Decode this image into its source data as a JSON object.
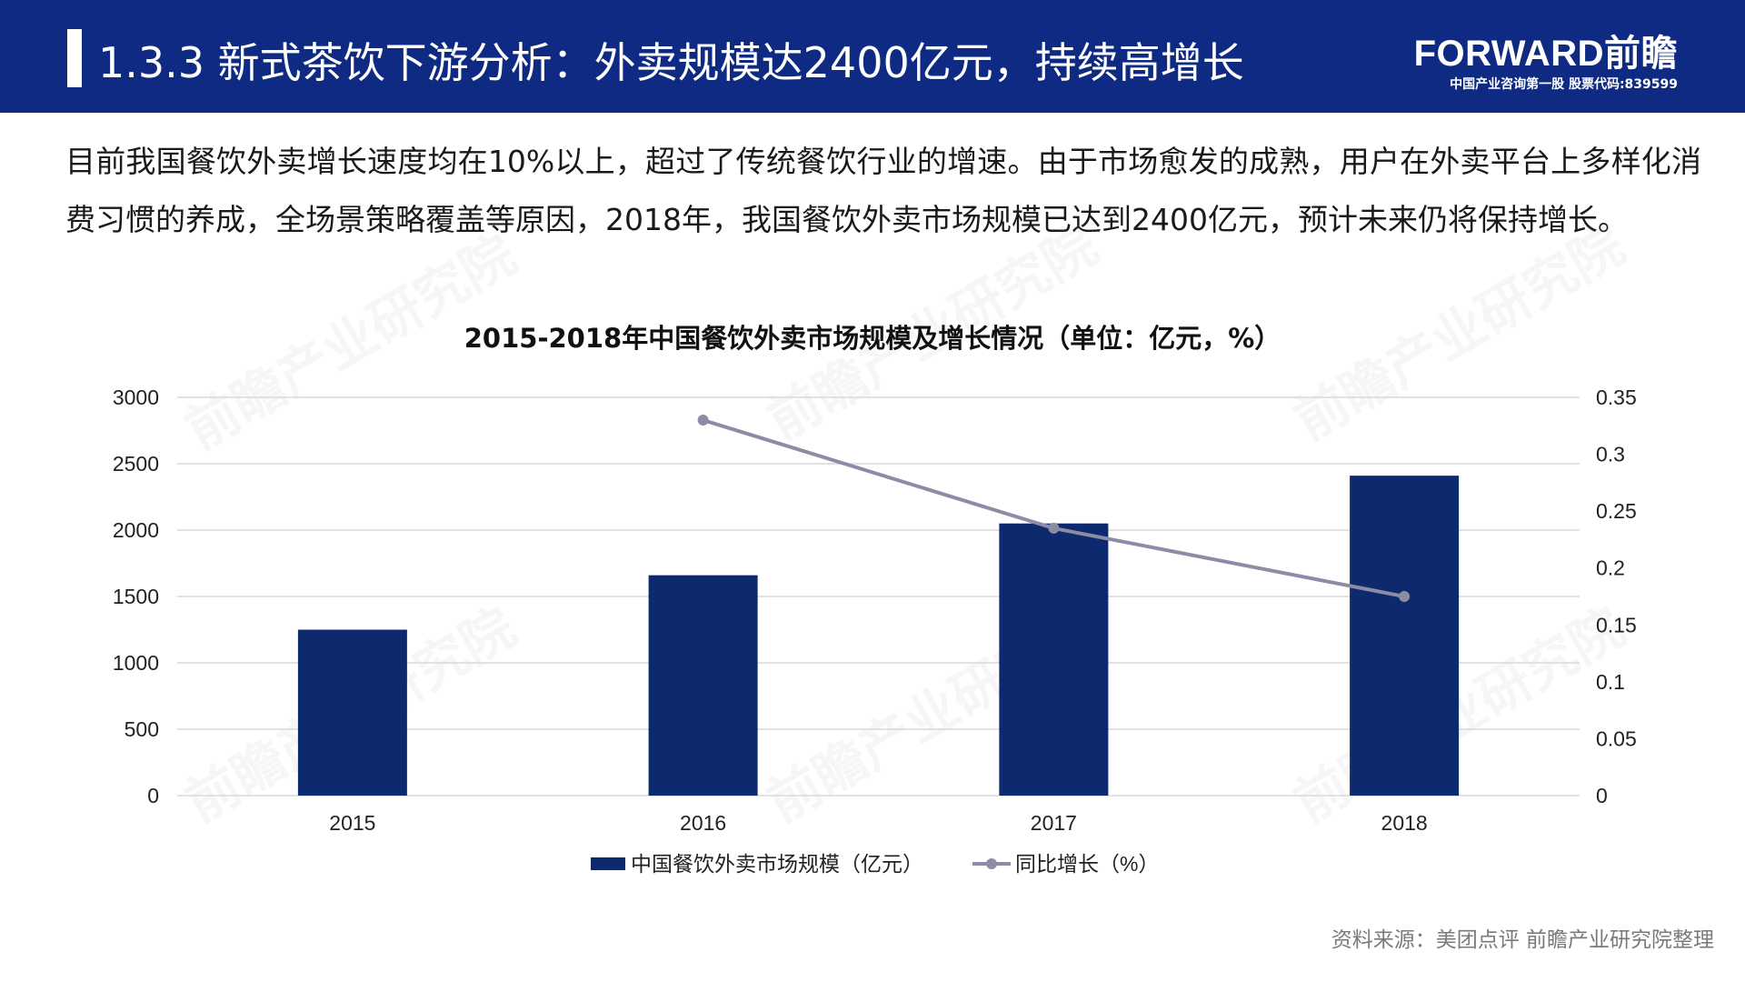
{
  "header": {
    "title": "1.3.3 新式茶饮下游分析：外卖规模达2400亿元，持续高增长",
    "logo_main": "FORWARD前瞻",
    "logo_sub": "中国产业咨询第一股 股票代码:839599"
  },
  "intro_text": "目前我国餐饮外卖增长速度均在10%以上，超过了传统餐饮行业的增速。由于市场愈发的成熟，用户在外卖平台上多样化消费习惯的养成，全场景策略覆盖等原因，2018年，我国餐饮外卖市场规模已达到2400亿元，预计未来仍将保持增长。",
  "watermark_text": "前瞻产业研究院",
  "colors": {
    "header_bg": "#0e2a82",
    "bar": "#0e2a6e",
    "line": "#8c8ca6",
    "grid": "#d9d9d9"
  },
  "chart_data": {
    "type": "bar",
    "title": "2015-2018年中国餐饮外卖市场规模及增长情况（单位：亿元，%）",
    "categories": [
      "2015",
      "2016",
      "2017",
      "2018"
    ],
    "series": [
      {
        "name": "中国餐饮外卖市场规模（亿元）",
        "type": "bar",
        "axis": "left",
        "values": [
          1250,
          1660,
          2050,
          2410
        ]
      },
      {
        "name": "同比增长（%）",
        "type": "line",
        "axis": "right",
        "values": [
          null,
          0.33,
          0.235,
          0.175
        ]
      }
    ],
    "y_left": {
      "min": 0,
      "max": 3000,
      "ticks": [
        "0",
        "500",
        "1000",
        "1500",
        "2000",
        "2500",
        "3000"
      ]
    },
    "y_right": {
      "min": 0,
      "max": 0.35,
      "ticks": [
        "0",
        "0.05",
        "0.1",
        "0.15",
        "0.2",
        "0.25",
        "0.3",
        "0.35"
      ]
    },
    "grid": true,
    "legend_position": "bottom"
  },
  "source_text": "资料来源：美团点评 前瞻产业研究院整理"
}
